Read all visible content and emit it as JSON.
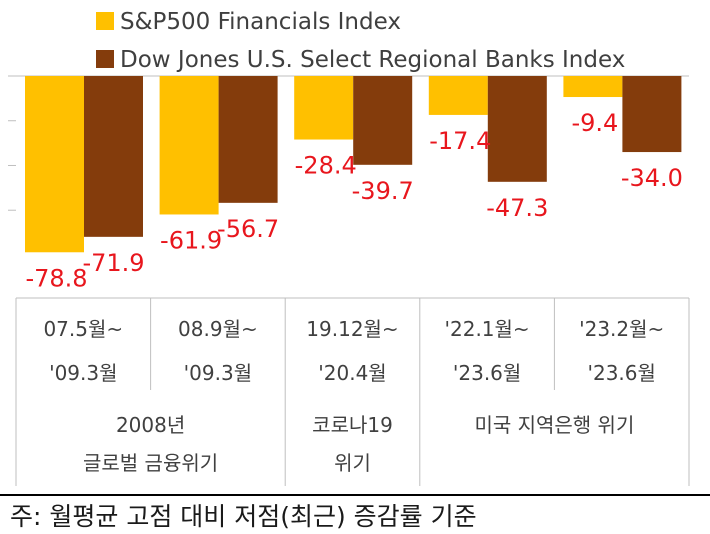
{
  "chart_data": {
    "type": "bar",
    "series": [
      {
        "name": "S&P500 Financials Index",
        "color": "#ffc000",
        "values": [
          -78.8,
          -61.9,
          -28.4,
          -17.4,
          -9.4
        ],
        "labels": [
          "-78.8",
          "-61.9",
          "-28.4",
          "-17.4",
          "-9.4"
        ]
      },
      {
        "name": "Dow Jones U.S. Select Regional Banks Index",
        "color": "#843c0c",
        "values": [
          -71.9,
          -56.7,
          -39.7,
          -47.3,
          -34.0
        ],
        "labels": [
          "-71.9",
          "-56.7",
          "-39.7",
          "-47.3",
          "-34.0"
        ]
      }
    ],
    "categories": [
      {
        "line1": "07.5월~",
        "line2": "'09.3월"
      },
      {
        "line1": "08.9월~",
        "line2": "'09.3월"
      },
      {
        "line1": "19.12월~",
        "line2": "'20.4월"
      },
      {
        "line1": "'22.1월~",
        "line2": "'23.6월"
      },
      {
        "line1": "'23.2월~",
        "line2": "'23.6월"
      }
    ],
    "groups": [
      {
        "lines": [
          "2008년",
          "글로벌 금융위기"
        ],
        "span": [
          0,
          1
        ]
      },
      {
        "lines": [
          "코로나19",
          "위기"
        ],
        "span": [
          2,
          2
        ]
      },
      {
        "lines": [
          "미국 지역은행 위기"
        ],
        "span": [
          3,
          4
        ]
      }
    ],
    "ylim": [
      -100,
      0
    ],
    "label_color": "#e8161d"
  },
  "note": "주: 월평균 고점 대비 저점(최근) 증감률 기준"
}
